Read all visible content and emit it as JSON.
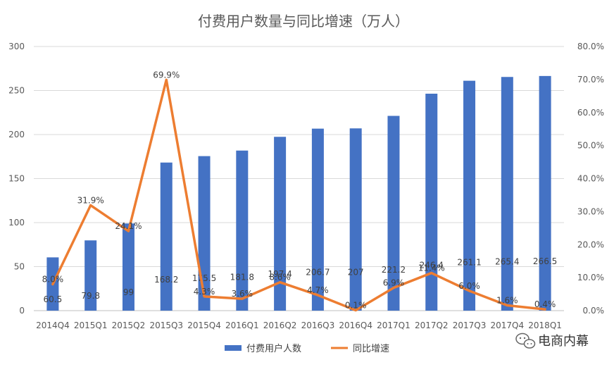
{
  "chart_data": {
    "type": "bar",
    "title": "付费用户数量与同比增速（万人）",
    "categories": [
      "2014Q4",
      "2015Q1",
      "2015Q2",
      "2015Q3",
      "2015Q4",
      "2016Q1",
      "2016Q2",
      "2016Q3",
      "2016Q4",
      "2017Q1",
      "2017Q2",
      "2017Q3",
      "2017Q4",
      "2018Q1"
    ],
    "series": [
      {
        "name": "付费用户人数",
        "type": "bar",
        "axis": "left",
        "color": "#4472C4",
        "values": [
          60.5,
          79.8,
          99,
          168.2,
          175.5,
          181.8,
          197.4,
          206.7,
          207,
          221.2,
          246.4,
          261.1,
          265.4,
          266.5
        ],
        "labels": [
          "60.5",
          "79.8",
          "99",
          "168.2",
          "175.5",
          "181.8",
          "197.4",
          "206.7",
          "207",
          "221.2",
          "246.4",
          "261.1",
          "265.4",
          "266.5"
        ]
      },
      {
        "name": "同比增速",
        "type": "line",
        "axis": "right",
        "color": "#ED7D31",
        "values": [
          0.08,
          0.319,
          0.241,
          0.699,
          0.043,
          0.036,
          0.086,
          0.047,
          0.001,
          0.069,
          0.114,
          0.06,
          0.016,
          0.004
        ],
        "labels": [
          "8.0%",
          "31.9%",
          "24.1%",
          "69.9%",
          "4.3%",
          "3.6%",
          "8.6%",
          "4.7%",
          "0.1%",
          "6.9%",
          "11.4%",
          "6.0%",
          "1.6%",
          "0.4%"
        ]
      }
    ],
    "y_left": {
      "min": 0,
      "max": 300,
      "ticks": [
        0,
        50,
        100,
        150,
        200,
        250,
        300
      ],
      "tick_labels": [
        "0",
        "50",
        "100",
        "150",
        "200",
        "250",
        "300"
      ]
    },
    "y_right": {
      "min": 0,
      "max": 0.8,
      "ticks": [
        0,
        0.1,
        0.2,
        0.3,
        0.4,
        0.5,
        0.6,
        0.7,
        0.8
      ],
      "tick_labels": [
        "0.0%",
        "10.0%",
        "20.0%",
        "30.0%",
        "40.0%",
        "50.0%",
        "60.0%",
        "70.0%",
        "80.0%"
      ]
    },
    "grid": true,
    "legend_position": "bottom"
  },
  "watermark": {
    "text": "电商内幕",
    "icon": "wechat-icon"
  }
}
